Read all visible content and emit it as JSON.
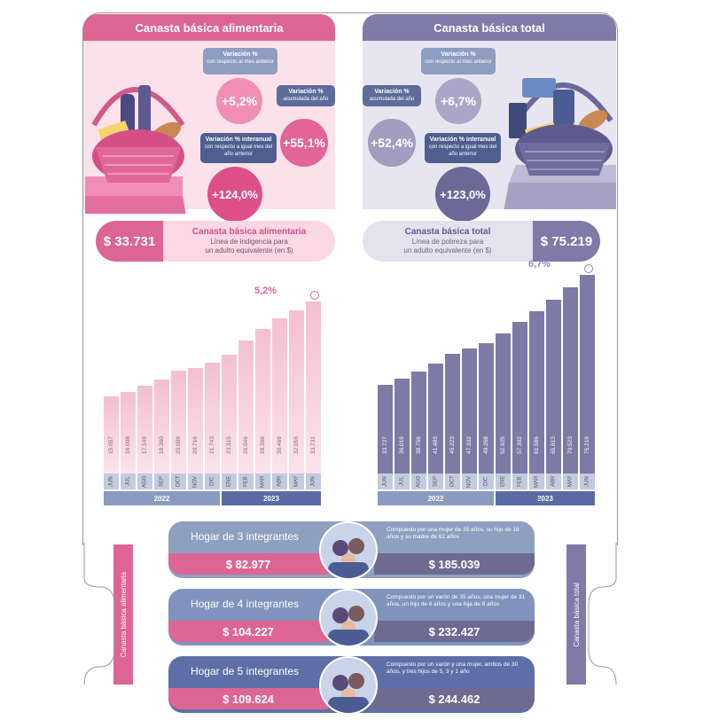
{
  "left": {
    "header": "Canasta básica alimentaria",
    "var_mensual": {
      "title": "Variación %",
      "sub": "con respecto al mes anterior",
      "value": "+5,2%"
    },
    "var_acumulada": {
      "title": "Variación %",
      "sub": "acumulada del año",
      "value": "+55,1%"
    },
    "var_interanual": {
      "title": "Variación % interanual",
      "sub": "con respecto a igual mes del año anterior",
      "value": "+124,0%"
    },
    "price": "$ 33.731",
    "pill_title": "Canasta básica alimentaria",
    "pill_sub1": "Línea de indigencia para",
    "pill_sub2": "un adulto equivalente (en $)",
    "last_change": "5,2%",
    "side_label": "Canasta básica alimentaria",
    "colors": {
      "main": "#dc6594",
      "light": "#f3bcd0",
      "bar_top": "#f4c2d3",
      "bar_bottom": "#fbe3eb"
    }
  },
  "right": {
    "header": "Canasta básica total",
    "var_mensual": {
      "title": "Variación %",
      "sub": "con respecto al mes anterior",
      "value": "+6,7%"
    },
    "var_acumulada": {
      "title": "Variación %",
      "sub": "acumulada del año",
      "value": "+52,4%"
    },
    "var_interanual": {
      "title": "Variación % interanual",
      "sub": "con respecto a igual mes del año anterior",
      "value": "+123,0%"
    },
    "price": "$ 75.219",
    "pill_title": "Canasta básica total",
    "pill_sub1": "Línea de pobreza para",
    "pill_sub2": "un adulto equivalente (en $)",
    "last_change": "6,7%",
    "side_label": "Canasta básica total",
    "colors": {
      "main": "#7f7aa8",
      "light": "#c9c5dc",
      "bar": "#7d7aa6"
    }
  },
  "chart_data": [
    {
      "type": "bar",
      "categories": [
        "JUN",
        "JUL",
        "AGO",
        "SEP",
        "OCT",
        "NOV",
        "DIC",
        "ENE",
        "FEB",
        "MAR",
        "ABR",
        "MAY",
        "JUN"
      ],
      "values": [
        15057,
        16008,
        17149,
        18360,
        20099,
        20716,
        21743,
        23315,
        26046,
        28368,
        30469,
        32056,
        33731
      ],
      "value_labels": [
        "15.057",
        "16.008",
        "17.149",
        "18.360",
        "20.099",
        "20.716",
        "21.743",
        "23.315",
        "26.046",
        "28.368",
        "30.469",
        "32.056",
        "33.731"
      ],
      "years": [
        "2022",
        "2023"
      ],
      "annotation": "5,2%"
    },
    {
      "type": "bar",
      "categories": [
        "JUN",
        "JUL",
        "AGO",
        "SEP",
        "OCT",
        "NOV",
        "DIC",
        "ENE",
        "FEB",
        "MAR",
        "ABR",
        "MAY",
        "JUN"
      ],
      "values": [
        33727,
        36019,
        38756,
        41483,
        45223,
        47332,
        49358,
        52925,
        57302,
        61586,
        65813,
        70523,
        75219
      ],
      "value_labels": [
        "33.727",
        "36.019",
        "38.756",
        "41.483",
        "45.223",
        "47.332",
        "49.358",
        "52.925",
        "57.302",
        "61.586",
        "65.813",
        "70.523",
        "75.219"
      ],
      "years": [
        "2022",
        "2023"
      ],
      "annotation": "6,7%"
    }
  ],
  "hogares": [
    {
      "title": "Hogar de 3 integrantes",
      "cba": "$ 82.977",
      "cbt": "$ 185.039",
      "desc": "Compuesto por una mujer de 35 años, su hijo de 18 años y su madre de 61 años"
    },
    {
      "title": "Hogar de 4 integrantes",
      "cba": "$ 104.227",
      "cbt": "$ 232.427",
      "desc": "Compuesto por un varón de 35 años, una mujer de 31 años, un hijo de 6 años y una hija de 8 años"
    },
    {
      "title": "Hogar de 5 integrantes",
      "cba": "$ 109.624",
      "cbt": "$ 244.462",
      "desc": "Compuesto por un varón y una mujer, ambos de 30 años, y tres hijos de 5, 3 y 1 año"
    }
  ],
  "hogar_colors": [
    "#8ea0c0",
    "#7f93bd",
    "#5e6fa7"
  ]
}
